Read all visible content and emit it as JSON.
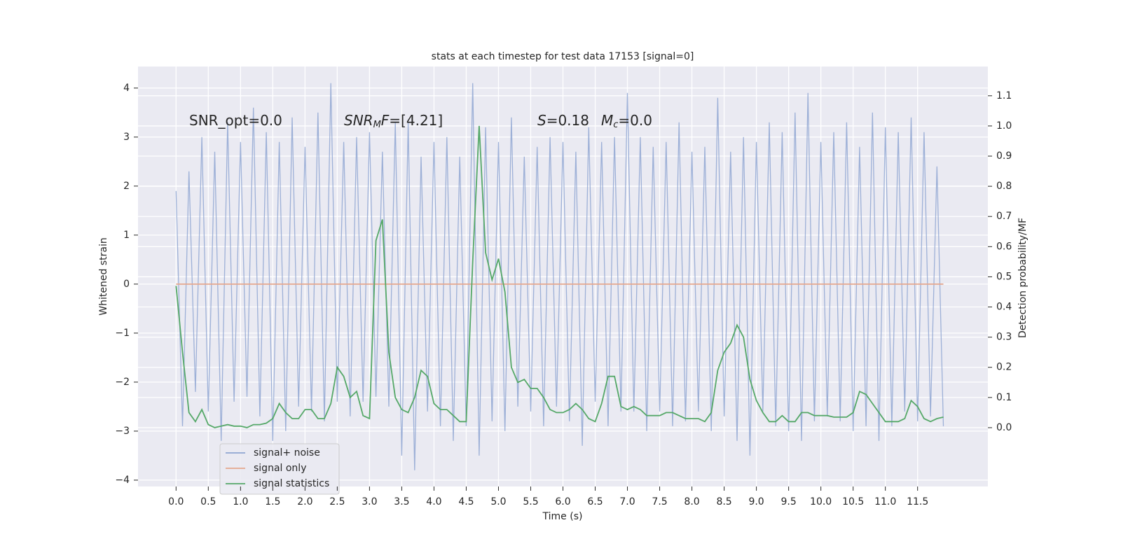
{
  "chart_data": {
    "type": "line",
    "title": "stats at each timestep for test data 17153 [signal=0]",
    "xlabel": "Time (s)",
    "ylabel": "Whitened strain",
    "y2label": "Detection probability/MF",
    "grid": true,
    "legend": "lower left",
    "xlim": [
      -0.59,
      12.59
    ],
    "ylim": [
      -4.13,
      4.44
    ],
    "y2lim": [
      -0.195,
      1.197
    ],
    "xticks": [
      {
        "value": 0,
        "label": "0.0"
      },
      {
        "value": 0.5,
        "label": "0.5"
      },
      {
        "value": 1,
        "label": "1.0"
      },
      {
        "value": 1.5,
        "label": "1.5"
      },
      {
        "value": 2,
        "label": "2.0"
      },
      {
        "value": 2.5,
        "label": "2.5"
      },
      {
        "value": 3,
        "label": "3.0"
      },
      {
        "value": 3.5,
        "label": "3.5"
      },
      {
        "value": 4,
        "label": "4.0"
      },
      {
        "value": 4.5,
        "label": "4.5"
      },
      {
        "value": 5,
        "label": "5.0"
      },
      {
        "value": 5.5,
        "label": "5.5"
      },
      {
        "value": 6,
        "label": "6.0"
      },
      {
        "value": 6.5,
        "label": "6.5"
      },
      {
        "value": 7,
        "label": "7.0"
      },
      {
        "value": 7.5,
        "label": "7.5"
      },
      {
        "value": 8,
        "label": "8.0"
      },
      {
        "value": 8.5,
        "label": "8.5"
      },
      {
        "value": 9,
        "label": "9.0"
      },
      {
        "value": 9.5,
        "label": "9.5"
      },
      {
        "value": 10,
        "label": "10.0"
      },
      {
        "value": 10.5,
        "label": "10.5"
      },
      {
        "value": 11,
        "label": "11.0"
      },
      {
        "value": 11.5,
        "label": "11.5"
      }
    ],
    "yticks": [
      {
        "value": -4,
        "label": "−4"
      },
      {
        "value": -3,
        "label": "−3"
      },
      {
        "value": -2,
        "label": "−2"
      },
      {
        "value": -1,
        "label": "−1"
      },
      0,
      1,
      2,
      3,
      4
    ],
    "y2ticks": [
      {
        "value": 0,
        "label": "0.0"
      },
      {
        "value": 0.1,
        "label": "0.1"
      },
      {
        "value": 0.2,
        "label": "0.2"
      },
      {
        "value": 0.3,
        "label": "0.3"
      },
      {
        "value": 0.4,
        "label": "0.4"
      },
      {
        "value": 0.5,
        "label": "0.5"
      },
      {
        "value": 0.6,
        "label": "0.6"
      },
      {
        "value": 0.7,
        "label": "0.7"
      },
      {
        "value": 0.8,
        "label": "0.8"
      },
      {
        "value": 0.9,
        "label": "0.9"
      },
      {
        "value": 1,
        "label": "1.0"
      },
      {
        "value": 1.1,
        "label": "1.1"
      }
    ],
    "annotations": [
      {
        "parts": [
          {
            "text": "SNR_opt=0.0"
          }
        ]
      },
      {
        "parts": [
          {
            "text": "SNR",
            "italic": true
          },
          {
            "text": "M",
            "italic": true,
            "sub": true
          },
          {
            "text": "F",
            "italic": true
          },
          {
            "text": "=[4.21]"
          }
        ]
      },
      {
        "parts": [
          {
            "text": "S",
            "italic": true
          },
          {
            "text": "=0.18"
          }
        ]
      },
      {
        "parts": [
          {
            "text": "M",
            "italic": true
          },
          {
            "text": "c",
            "italic": true,
            "sub": true
          },
          {
            "text": "=0.0"
          }
        ]
      }
    ],
    "x": [
      0,
      0.1,
      0.2,
      0.3,
      0.4,
      0.5,
      0.6,
      0.7,
      0.8,
      0.9,
      1,
      1.1,
      1.2,
      1.3,
      1.4,
      1.5,
      1.6,
      1.7,
      1.8,
      1.9,
      2,
      2.1,
      2.2,
      2.3,
      2.4,
      2.5,
      2.6,
      2.7,
      2.8,
      2.9,
      3,
      3.1,
      3.2,
      3.3,
      3.4,
      3.5,
      3.6,
      3.7,
      3.8,
      3.9,
      4,
      4.1,
      4.2,
      4.3,
      4.4,
      4.5,
      4.6,
      4.7,
      4.8,
      4.9,
      5,
      5.1,
      5.2,
      5.3,
      5.4,
      5.5,
      5.6,
      5.7,
      5.8,
      5.9,
      6,
      6.1,
      6.2,
      6.3,
      6.4,
      6.5,
      6.6,
      6.7,
      6.8,
      6.9,
      7,
      7.1,
      7.2,
      7.3,
      7.4,
      7.5,
      7.6,
      7.7,
      7.8,
      7.9,
      8,
      8.1,
      8.2,
      8.3,
      8.4,
      8.5,
      8.6,
      8.7,
      8.8,
      8.9,
      9,
      9.1,
      9.2,
      9.3,
      9.4,
      9.5,
      9.6,
      9.7,
      9.8,
      9.9,
      10,
      10.1,
      10.2,
      10.3,
      10.4,
      10.5,
      10.6,
      10.7,
      10.8,
      10.9,
      11,
      11.1,
      11.2,
      11.3,
      11.4,
      11.5,
      11.6,
      11.7,
      11.8,
      11.9
    ],
    "series": [
      {
        "name": "signal+ noise",
        "color": "#8fa6d2",
        "values": [
          1.9,
          -2.9,
          2.3,
          -2.2,
          3.0,
          -2.6,
          2.7,
          -3.2,
          3.3,
          -2.4,
          2.9,
          -2.3,
          3.6,
          -2.7,
          3.1,
          -3.2,
          2.9,
          -3.0,
          3.4,
          -2.5,
          2.8,
          -2.6,
          3.5,
          -2.8,
          4.1,
          -2.4,
          2.9,
          -2.7,
          3.0,
          -2.4,
          3.1,
          -2.3,
          2.7,
          -2.5,
          3.3,
          -3.5,
          3.3,
          -3.8,
          2.6,
          -2.6,
          2.9,
          -2.9,
          3.0,
          -3.2,
          2.6,
          -2.9,
          4.1,
          -3.5,
          3.2,
          -2.8,
          2.9,
          -3.0,
          3.4,
          -2.5,
          2.6,
          -2.6,
          2.8,
          -2.9,
          3.0,
          -2.5,
          2.9,
          -2.8,
          2.7,
          -3.3,
          3.2,
          -2.4,
          2.9,
          -2.9,
          3.0,
          -2.6,
          3.9,
          -2.6,
          3.0,
          -3.0,
          2.8,
          -2.6,
          2.9,
          -2.9,
          3.3,
          -2.8,
          2.7,
          -2.6,
          2.8,
          -3.0,
          3.8,
          -2.7,
          2.7,
          -3.2,
          3.0,
          -3.5,
          2.9,
          -2.6,
          3.3,
          -2.9,
          3.1,
          -3.0,
          3.5,
          -3.2,
          3.9,
          -2.8,
          2.9,
          -2.7,
          3.1,
          -2.8,
          3.3,
          -3.0,
          2.8,
          -2.9,
          3.5,
          -3.2,
          3.2,
          -2.9,
          3.1,
          -2.6,
          3.4,
          -2.8,
          3.1,
          -2.7,
          2.4,
          -2.9
        ]
      },
      {
        "name": "signal only",
        "color": "#e6a88e",
        "x": [
          0,
          11.9
        ],
        "values": [
          0,
          0
        ]
      },
      {
        "name": "signal statistics",
        "color": "#55a868",
        "axis": "y2",
        "values": [
          0.47,
          0.25,
          0.05,
          0.02,
          0.06,
          0.01,
          0.0,
          0.005,
          0.01,
          0.005,
          0.005,
          0.0,
          0.01,
          0.01,
          0.015,
          0.03,
          0.08,
          0.05,
          0.03,
          0.03,
          0.06,
          0.06,
          0.03,
          0.03,
          0.08,
          0.2,
          0.17,
          0.1,
          0.12,
          0.04,
          0.03,
          0.62,
          0.69,
          0.25,
          0.1,
          0.06,
          0.05,
          0.1,
          0.19,
          0.17,
          0.08,
          0.06,
          0.06,
          0.04,
          0.02,
          0.02,
          0.55,
          1.0,
          0.58,
          0.49,
          0.56,
          0.45,
          0.2,
          0.15,
          0.16,
          0.13,
          0.13,
          0.1,
          0.06,
          0.05,
          0.05,
          0.06,
          0.08,
          0.06,
          0.03,
          0.02,
          0.08,
          0.17,
          0.17,
          0.07,
          0.06,
          0.07,
          0.06,
          0.04,
          0.04,
          0.04,
          0.05,
          0.05,
          0.04,
          0.03,
          0.03,
          0.03,
          0.02,
          0.05,
          0.19,
          0.25,
          0.28,
          0.34,
          0.3,
          0.16,
          0.09,
          0.05,
          0.02,
          0.02,
          0.04,
          0.02,
          0.02,
          0.05,
          0.05,
          0.04,
          0.04,
          0.04,
          0.035,
          0.035,
          0.035,
          0.05,
          0.12,
          0.11,
          0.08,
          0.05,
          0.02,
          0.02,
          0.02,
          0.03,
          0.09,
          0.07,
          0.03,
          0.02,
          0.03,
          0.035
        ]
      }
    ]
  }
}
